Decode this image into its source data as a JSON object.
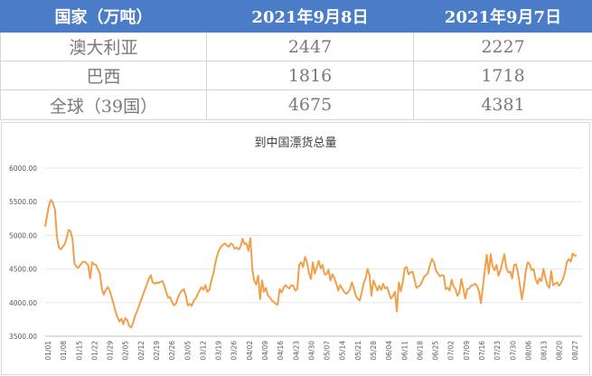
{
  "table": {
    "headers": [
      "国家（万吨）",
      "2021年9月8日",
      "2021年9月7日"
    ],
    "rows": [
      [
        "澳大利亚",
        "2447",
        "2227"
      ],
      [
        "巴西",
        "1816",
        "1718"
      ],
      [
        "全球（39国）",
        "4675",
        "4381"
      ]
    ]
  },
  "colors": {
    "header_bg": "#4a7cc8",
    "line": "#f0a04b",
    "grid": "#e6e6e6"
  },
  "chart_data": {
    "type": "line",
    "title": "到中国漂货总量",
    "xlabel": "",
    "ylabel": "",
    "ylim": [
      3500,
      6000
    ],
    "ytick_labels": [
      "3500.00",
      "4000.00",
      "4500.00",
      "5000.00",
      "5500.00",
      "6000.00"
    ],
    "yticks": [
      3500,
      4000,
      4500,
      5000,
      5500,
      6000
    ],
    "grid": true,
    "xtick_labels": [
      "01/01",
      "01/08",
      "01/15",
      "01/22",
      "01/29",
      "02/05",
      "02/12",
      "02/19",
      "02/26",
      "03/05",
      "03/12",
      "03/19",
      "03/26",
      "04/02",
      "04/09",
      "04/16",
      "04/23",
      "04/30",
      "05/07",
      "05/14",
      "05/21",
      "05/28",
      "06/04",
      "06/11",
      "06/18",
      "06/25",
      "07/02",
      "07/09",
      "07/16",
      "07/23",
      "07/30",
      "08/06",
      "08/13",
      "08/20",
      "08/27"
    ],
    "series": [
      {
        "color": "#f0a04b",
        "values": [
          5130,
          5300,
          5450,
          5530,
          5480,
          5380,
          4980,
          4820,
          4790,
          4830,
          4870,
          4960,
          5080,
          5060,
          4940,
          4580,
          4530,
          4520,
          4560,
          4600,
          4610,
          4590,
          4560,
          4360,
          4600,
          4570,
          4560,
          4500,
          4430,
          4200,
          4120,
          4190,
          4230,
          4180,
          4080,
          3980,
          3870,
          3780,
          3720,
          3760,
          3680,
          3770,
          3740,
          3650,
          3630,
          3700,
          3800,
          3870,
          3950,
          4030,
          4110,
          4190,
          4270,
          4350,
          4410,
          4300,
          4280,
          4300,
          4290,
          4310,
          4320,
          4250,
          4150,
          4070,
          4080,
          4000,
          3960,
          3990,
          4080,
          4140,
          4180,
          4200,
          4100,
          3960,
          3980,
          3950,
          4030,
          4060,
          4120,
          4180,
          4230,
          4190,
          4260,
          4160,
          4190,
          4320,
          4420,
          4570,
          4700,
          4780,
          4830,
          4860,
          4880,
          4850,
          4830,
          4880,
          4860,
          4800,
          4820,
          4790,
          4830,
          4950,
          4870,
          4880,
          4770,
          4960,
          4500,
          4320,
          4270,
          4400,
          4050,
          4330,
          4160,
          4220,
          4100,
          4080,
          4030,
          4010,
          3980,
          3970,
          4200,
          4150,
          4220,
          4260,
          4230,
          4210,
          4260,
          4250,
          4180,
          4200,
          4560,
          4600,
          4530,
          4680,
          4600,
          4440,
          4350,
          4600,
          4430,
          4530,
          4620,
          4510,
          4560,
          4420,
          4420,
          4490,
          4330,
          4420,
          4370,
          4280,
          4180,
          4260,
          4210,
          4160,
          4130,
          4150,
          4200,
          4300,
          4210,
          4100,
          4060,
          4030,
          4150,
          4290,
          4360,
          4500,
          4410,
          4100,
          4330,
          4260,
          4180,
          4250,
          4190,
          4280,
          4210,
          4230,
          4140,
          4060,
          4100,
          4160,
          3870,
          4300,
          4170,
          4300,
          4510,
          4530,
          4420,
          4450,
          4460,
          4350,
          4220,
          4240,
          4260,
          4320,
          4390,
          4410,
          4450,
          4570,
          4650,
          4600,
          4480,
          4430,
          4390,
          4410,
          4400,
          4200,
          4220,
          4180,
          4340,
          4240,
          4200,
          4100,
          4150,
          4350,
          4210,
          4060,
          4200,
          4210,
          4250,
          4260,
          4280,
          4250,
          4170,
          3990,
          4230,
          4480,
          4710,
          4430,
          4720,
          4540,
          4480,
          4560,
          4400,
          4480,
          4600,
          4720,
          4520,
          4450,
          4460,
          4360,
          4560,
          4570,
          4440,
          4250,
          4050,
          4230,
          4480,
          4600,
          4570,
          4480,
          4500,
          4350,
          4280,
          4360,
          4320,
          4500,
          4370,
          4260,
          4220,
          4470,
          4260,
          4280,
          4300,
          4250,
          4290,
          4350,
          4450,
          4600,
          4650,
          4610,
          4730,
          4700,
          4700
        ]
      }
    ]
  }
}
